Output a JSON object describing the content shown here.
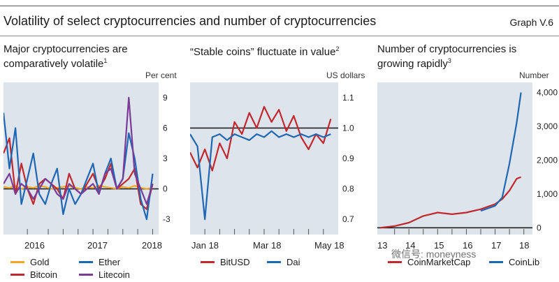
{
  "header": {
    "title": "Volatility of select cryptocurrencies and number of cryptocurrencies",
    "graph_number": "Graph V.6"
  },
  "colors": {
    "gold": "#f5a623",
    "bitcoin": "#c0282e",
    "ether": "#1f66b3",
    "litecoin": "#7b3b96",
    "plot_bg": "#dde4ec",
    "zero_line": "#222222"
  },
  "watermark": "微信号: moneyness",
  "chart_data": [
    {
      "type": "line",
      "title": "Major cryptocurrencies are comparatively volatile",
      "title_footnote": "1",
      "unit": "Per cent",
      "ylim": [
        -4.5,
        10.5
      ],
      "yticks": [
        9,
        6,
        3,
        0,
        -3
      ],
      "xticks": [
        "2016",
        "2017",
        "2018"
      ],
      "x": [
        2015.5,
        2015.6,
        2015.7,
        2015.8,
        2015.9,
        2016.0,
        2016.1,
        2016.2,
        2016.3,
        2016.4,
        2016.5,
        2016.6,
        2016.7,
        2016.8,
        2016.9,
        2017.0,
        2017.1,
        2017.2,
        2017.3,
        2017.4,
        2017.5,
        2017.6,
        2017.7,
        2017.8,
        2017.9,
        2018.0
      ],
      "series": [
        {
          "name": "Gold",
          "color_key": "gold",
          "values": [
            0.2,
            0.1,
            0.3,
            0.0,
            0.2,
            0.1,
            0.3,
            0.2,
            0.0,
            0.1,
            0.2,
            0.3,
            0.1,
            0.0,
            0.2,
            0.1,
            0.3,
            0.2,
            0.1,
            0.0,
            0.2,
            0.1,
            0.3,
            0.1,
            0.0,
            0.1
          ]
        },
        {
          "name": "Bitcoin",
          "color_key": "bitcoin",
          "values": [
            3.5,
            5.0,
            -0.5,
            2.5,
            0.0,
            -1.5,
            0.5,
            1.0,
            0.5,
            0.0,
            -1.0,
            1.5,
            0.0,
            -0.5,
            0.5,
            1.5,
            0.0,
            1.0,
            2.5,
            0.0,
            0.5,
            1.0,
            2.0,
            -1.5,
            -2.0,
            0.5
          ]
        },
        {
          "name": "Ether",
          "color_key": "ether",
          "values": [
            7.5,
            2.0,
            6.0,
            -1.5,
            1.0,
            3.5,
            -0.5,
            -1.5,
            0.5,
            2.0,
            -2.5,
            0.0,
            -1.5,
            -0.5,
            1.0,
            2.5,
            -0.5,
            1.5,
            3.0,
            0.0,
            1.0,
            5.5,
            3.0,
            -1.0,
            -3.0,
            1.5
          ]
        },
        {
          "name": "Litecoin",
          "color_key": "litecoin",
          "values": [
            0.5,
            1.5,
            -0.5,
            0.5,
            0.0,
            -1.0,
            0.0,
            1.0,
            0.5,
            -0.5,
            -1.0,
            0.5,
            0.0,
            -0.5,
            0.0,
            0.5,
            -0.5,
            1.5,
            2.0,
            0.0,
            1.0,
            9.0,
            1.5,
            0.0,
            -1.5,
            0.5
          ]
        }
      ]
    },
    {
      "type": "line",
      "title": "“Stable coins” fluctuate in value",
      "title_footnote": "2",
      "unit": "US dollars",
      "ylim": [
        0.65,
        1.15
      ],
      "yticks": [
        1.1,
        1.0,
        0.9,
        0.8,
        0.7
      ],
      "xticks": [
        "Jan 18",
        "Mar 18",
        "May 18"
      ],
      "x": [
        1.0,
        1.25,
        1.5,
        1.75,
        2.0,
        2.25,
        2.5,
        2.75,
        3.0,
        3.25,
        3.5,
        3.75,
        4.0,
        4.25,
        4.5,
        4.75,
        5.0,
        5.25,
        5.5,
        5.75
      ],
      "series": [
        {
          "name": "BitUSD",
          "color_key": "bitcoin",
          "values": [
            0.92,
            0.87,
            0.93,
            0.86,
            0.95,
            0.9,
            1.02,
            0.98,
            1.05,
            1.0,
            1.07,
            1.02,
            1.06,
            0.99,
            1.04,
            0.97,
            0.93,
            0.98,
            0.95,
            1.03
          ]
        },
        {
          "name": "Dai",
          "color_key": "ether",
          "values": [
            0.98,
            0.94,
            0.7,
            0.97,
            0.98,
            0.96,
            0.98,
            0.97,
            0.96,
            0.98,
            0.97,
            0.99,
            0.97,
            0.98,
            0.97,
            0.98,
            0.97,
            0.98,
            0.97,
            0.98
          ]
        }
      ]
    },
    {
      "type": "line",
      "title": "Number of cryptocurrencies is growing rapidly",
      "title_footnote": "3",
      "unit": "Number",
      "ylim": [
        -200,
        4300
      ],
      "yticks": [
        4000,
        3000,
        2000,
        1000,
        0
      ],
      "xticks": [
        "13",
        "14",
        "15",
        "16",
        "17",
        "18"
      ],
      "x": [
        2013.0,
        2013.5,
        2014.0,
        2014.5,
        2015.0,
        2015.5,
        2016.0,
        2016.5,
        2017.0,
        2017.25,
        2017.5,
        2017.75,
        2017.9
      ],
      "series": [
        {
          "name": "CoinMarketCap",
          "color_key": "bitcoin",
          "values": [
            0,
            50,
            150,
            350,
            450,
            400,
            450,
            550,
            700,
            850,
            1100,
            1450,
            1500
          ]
        },
        {
          "name": "CoinLib",
          "color_key": "ether",
          "values": [
            null,
            null,
            null,
            null,
            null,
            null,
            null,
            500,
            650,
            900,
            1900,
            3100,
            4000
          ]
        }
      ]
    }
  ],
  "legends": [
    [
      {
        "label": "Gold",
        "color_key": "gold"
      },
      {
        "label": "Ether",
        "color_key": "ether"
      },
      {
        "label": "Bitcoin",
        "color_key": "bitcoin"
      },
      {
        "label": "Litecoin",
        "color_key": "litecoin"
      }
    ],
    [
      {
        "label": "BitUSD",
        "color_key": "bitcoin"
      },
      {
        "label": "Dai",
        "color_key": "ether"
      }
    ],
    [
      {
        "label": "CoinMarketCap",
        "color_key": "bitcoin"
      },
      {
        "label": "CoinLib",
        "color_key": "ether"
      }
    ]
  ]
}
